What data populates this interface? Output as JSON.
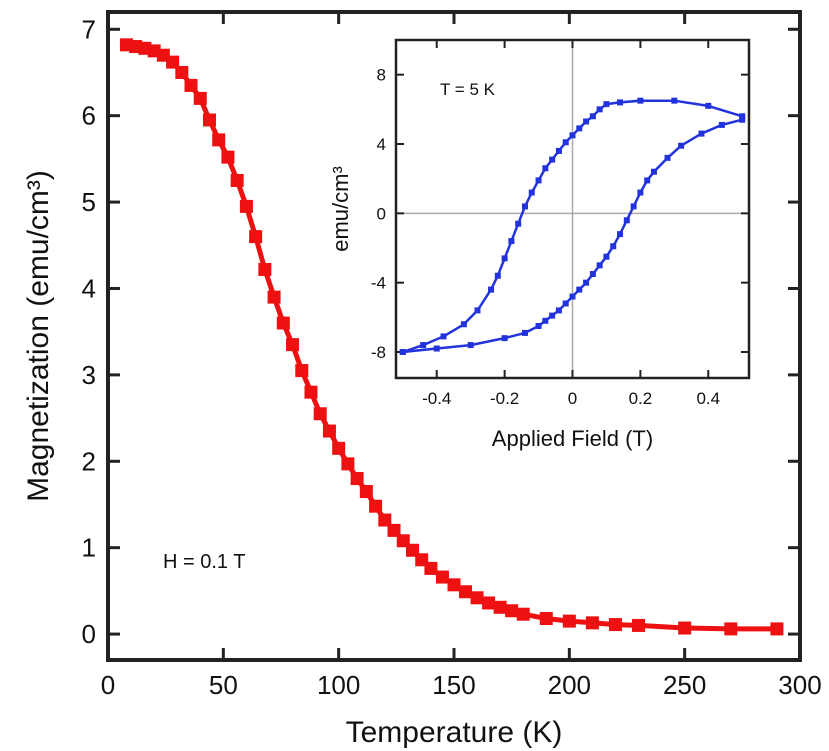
{
  "chart_data": [
    {
      "type": "line",
      "xlabel": "Temperature (K)",
      "ylabel": "Magnetization (emu/cm³)",
      "xlim": [
        0,
        300
      ],
      "ylim": [
        -0.3,
        7.2
      ],
      "xticks": [
        "0",
        "50",
        "100",
        "150",
        "200",
        "250",
        "300"
      ],
      "yticks": [
        "0",
        "1",
        "2",
        "3",
        "4",
        "5",
        "6",
        "7"
      ],
      "annotation": "H = 0.1 T",
      "colors": {
        "series": "#ee1111"
      },
      "series": [
        {
          "x": [
            8,
            12,
            16,
            20,
            24,
            28,
            32,
            36,
            40,
            44,
            48,
            52,
            56,
            60,
            64,
            68,
            72,
            76,
            80,
            84,
            88,
            92,
            96,
            100,
            104,
            108,
            112,
            116,
            120,
            124,
            128,
            132,
            136,
            140,
            145,
            150,
            155,
            160,
            165,
            170,
            175,
            180,
            190,
            200,
            210,
            220,
            230,
            250,
            270,
            290
          ],
          "y": [
            6.82,
            6.8,
            6.78,
            6.75,
            6.7,
            6.62,
            6.5,
            6.35,
            6.2,
            5.95,
            5.72,
            5.52,
            5.25,
            4.95,
            4.6,
            4.22,
            3.9,
            3.6,
            3.35,
            3.05,
            2.8,
            2.55,
            2.35,
            2.15,
            1.97,
            1.8,
            1.65,
            1.48,
            1.32,
            1.2,
            1.08,
            0.97,
            0.86,
            0.76,
            0.66,
            0.57,
            0.49,
            0.42,
            0.36,
            0.31,
            0.27,
            0.23,
            0.18,
            0.15,
            0.13,
            0.11,
            0.1,
            0.07,
            0.06,
            0.06
          ]
        }
      ]
    },
    {
      "type": "line",
      "xlabel": "Applied Field (T)",
      "ylabel": "emu/cm³",
      "xlim": [
        -0.52,
        0.52
      ],
      "ylim": [
        -9.5,
        10
      ],
      "xticks": [
        "-0.4",
        "-0.2",
        "0",
        "0.2",
        "0.4"
      ],
      "yticks": [
        "-8",
        "-4",
        "0",
        "4",
        "8"
      ],
      "annotation": "T = 5 K",
      "grid": "zero lines",
      "colors": {
        "series": "#2233dd"
      },
      "series": [
        {
          "x": [
            -0.5,
            -0.44,
            -0.38,
            -0.32,
            -0.28,
            -0.24,
            -0.22,
            -0.2,
            -0.18,
            -0.16,
            -0.14,
            -0.12,
            -0.1,
            -0.08,
            -0.06,
            -0.04,
            -0.02,
            0.0,
            0.02,
            0.04,
            0.06,
            0.08,
            0.1,
            0.14,
            0.2,
            0.3,
            0.4,
            0.5
          ],
          "y": [
            -8.0,
            -7.6,
            -7.1,
            -6.4,
            -5.6,
            -4.4,
            -3.6,
            -2.6,
            -1.6,
            -0.6,
            0.4,
            1.2,
            1.9,
            2.6,
            3.1,
            3.6,
            4.1,
            4.5,
            4.9,
            5.3,
            5.6,
            6.0,
            6.3,
            6.4,
            6.5,
            6.5,
            6.2,
            5.6
          ]
        },
        {
          "x": [
            0.5,
            0.44,
            0.38,
            0.32,
            0.28,
            0.24,
            0.22,
            0.2,
            0.18,
            0.16,
            0.14,
            0.12,
            0.1,
            0.08,
            0.06,
            0.04,
            0.02,
            0.0,
            -0.02,
            -0.04,
            -0.06,
            -0.08,
            -0.1,
            -0.14,
            -0.2,
            -0.3,
            -0.4,
            -0.5
          ],
          "y": [
            5.4,
            5.1,
            4.6,
            3.9,
            3.2,
            2.4,
            1.9,
            1.2,
            0.4,
            -0.4,
            -1.2,
            -1.9,
            -2.5,
            -3.0,
            -3.5,
            -4.0,
            -4.4,
            -4.8,
            -5.2,
            -5.6,
            -5.9,
            -6.2,
            -6.5,
            -6.9,
            -7.2,
            -7.6,
            -7.8,
            -8.0
          ]
        }
      ]
    }
  ]
}
